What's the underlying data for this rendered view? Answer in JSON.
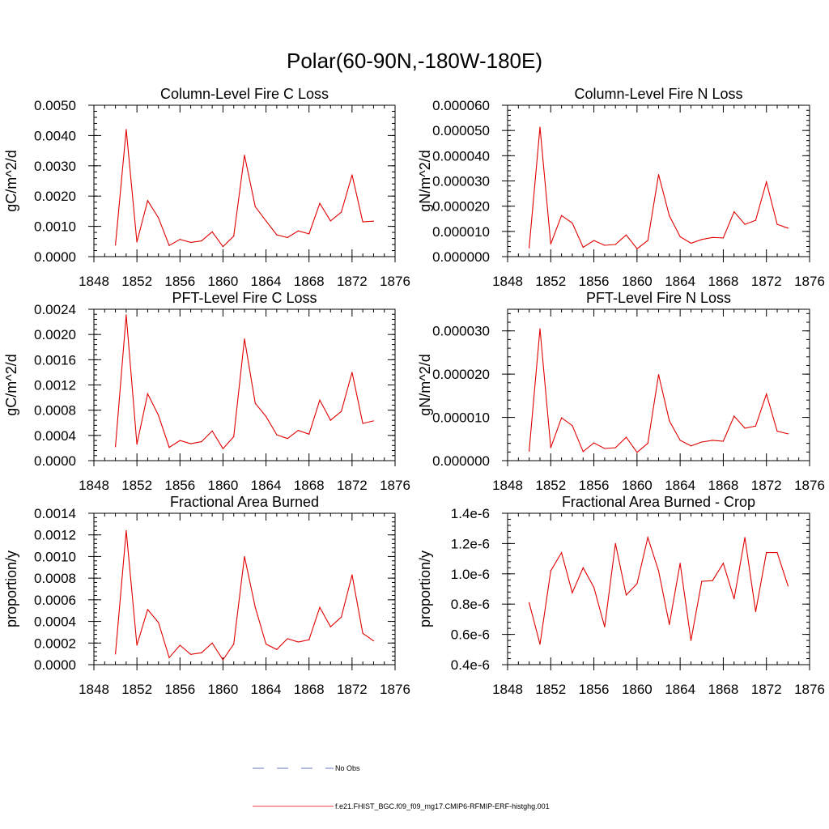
{
  "figure_title": "Polar(60-90N,-180W-180E)",
  "legend": [
    {
      "label": "No Obs",
      "color": "#3b4fb0",
      "style": "dashed"
    },
    {
      "label": "f.e21.FHIST_BGC.f09_f09_mg17.CMIP6-RFMIP-ERF-histghg.001",
      "color": "#e00000",
      "style": "solid"
    }
  ],
  "series_color": "#e00000",
  "chart_data": [
    {
      "type": "line",
      "title": "Column-Level Fire C Loss",
      "ylabel": "gC/m^2/d",
      "xlabel": "",
      "xlim": [
        1848,
        1876
      ],
      "xticks": [
        "1848",
        "1852",
        "1856",
        "1860",
        "1864",
        "1868",
        "1872",
        "1876"
      ],
      "ylim": [
        0,
        0.005
      ],
      "yticks": [
        "0.0000",
        "0.0010",
        "0.0020",
        "0.0030",
        "0.0040",
        "0.0050"
      ],
      "x": [
        1850,
        1851,
        1852,
        1853,
        1854,
        1855,
        1856,
        1857,
        1858,
        1859,
        1860,
        1861,
        1862,
        1863,
        1864,
        1865,
        1866,
        1867,
        1868,
        1869,
        1870,
        1871,
        1872,
        1873,
        1874
      ],
      "values": [
        0.00038,
        0.0042,
        0.00048,
        0.00185,
        0.00128,
        0.00037,
        0.00057,
        0.00047,
        0.00052,
        0.00082,
        0.00033,
        0.00068,
        0.00335,
        0.00165,
        0.00118,
        0.00072,
        0.00063,
        0.00085,
        0.00075,
        0.00176,
        0.00118,
        0.00147,
        0.0027,
        0.00115,
        0.00117
      ]
    },
    {
      "type": "line",
      "title": "Column-Level Fire N Loss",
      "ylabel": "gN/m^2/d",
      "xlabel": "",
      "xlim": [
        1848,
        1876
      ],
      "xticks": [
        "1848",
        "1852",
        "1856",
        "1860",
        "1864",
        "1868",
        "1872",
        "1876"
      ],
      "ylim": [
        0,
        6e-05
      ],
      "yticks": [
        "0.000000",
        "0.000010",
        "0.000020",
        "0.000030",
        "0.000040",
        "0.000050",
        "0.000060"
      ],
      "x": [
        1850,
        1851,
        1852,
        1853,
        1854,
        1855,
        1856,
        1857,
        1858,
        1859,
        1860,
        1861,
        1862,
        1863,
        1864,
        1865,
        1866,
        1867,
        1868,
        1869,
        1870,
        1871,
        1872,
        1873,
        1874
      ],
      "values": [
        3.5e-06,
        5.13e-05,
        5e-06,
        1.63e-05,
        1.33e-05,
        3.7e-06,
        6.4e-06,
        4.5e-06,
        4.8e-06,
        8.6e-06,
        3.1e-06,
        6.4e-06,
        3.25e-05,
        1.62e-05,
        7.9e-06,
        5.3e-06,
        6.8e-06,
        7.6e-06,
        7.4e-06,
        1.78e-05,
        1.28e-05,
        1.44e-05,
        2.96e-05,
        1.28e-05,
        1.13e-05
      ]
    },
    {
      "type": "line",
      "title": "PFT-Level Fire C Loss",
      "ylabel": "gC/m^2/d",
      "xlabel": "",
      "xlim": [
        1848,
        1876
      ],
      "xticks": [
        "1848",
        "1852",
        "1856",
        "1860",
        "1864",
        "1868",
        "1872",
        "1876"
      ],
      "ylim": [
        0,
        0.0024
      ],
      "yticks": [
        "0.0000",
        "0.0004",
        "0.0008",
        "0.0012",
        "0.0016",
        "0.0020",
        "0.0024"
      ],
      "x": [
        1850,
        1851,
        1852,
        1853,
        1854,
        1855,
        1856,
        1857,
        1858,
        1859,
        1860,
        1861,
        1862,
        1863,
        1864,
        1865,
        1866,
        1867,
        1868,
        1869,
        1870,
        1871,
        1872,
        1873,
        1874
      ],
      "values": [
        0.00022,
        0.00231,
        0.00026,
        0.00106,
        0.00072,
        0.00021,
        0.00032,
        0.00027,
        0.0003,
        0.00047,
        0.00019,
        0.00038,
        0.00193,
        0.00091,
        0.0007,
        0.00041,
        0.00035,
        0.00048,
        0.00042,
        0.00096,
        0.00064,
        0.00078,
        0.0014,
        0.00059,
        0.00063
      ]
    },
    {
      "type": "line",
      "title": "PFT-Level Fire N Loss",
      "ylabel": "gN/m^2/d",
      "xlabel": "",
      "xlim": [
        1848,
        1876
      ],
      "xticks": [
        "1848",
        "1852",
        "1856",
        "1860",
        "1864",
        "1868",
        "1872",
        "1876"
      ],
      "ylim": [
        0,
        3.5e-05
      ],
      "yticks": [
        "0.000000",
        "0.000010",
        "0.000020",
        "0.000030"
      ],
      "ytick_values": [
        0,
        1e-05,
        2e-05,
        3e-05
      ],
      "x": [
        1850,
        1851,
        1852,
        1853,
        1854,
        1855,
        1856,
        1857,
        1858,
        1859,
        1860,
        1861,
        1862,
        1863,
        1864,
        1865,
        1866,
        1867,
        1868,
        1869,
        1870,
        1871,
        1872,
        1873,
        1874
      ],
      "values": [
        2.2e-06,
        3.05e-05,
        3e-06,
        9.9e-06,
        8.1e-06,
        2.1e-06,
        4.1e-06,
        2.8e-06,
        3e-06,
        5.4e-06,
        1.9e-06,
        4e-06,
        1.99e-05,
        9.2e-06,
        4.7e-06,
        3.4e-06,
        4.3e-06,
        4.7e-06,
        4.5e-06,
        1.03e-05,
        7.5e-06,
        8e-06,
        1.54e-05,
        6.8e-06,
        6.2e-06
      ]
    },
    {
      "type": "line",
      "title": "Fractional Area Burned",
      "ylabel": "proportion/y",
      "xlabel": "",
      "xlim": [
        1848,
        1876
      ],
      "xticks": [
        "1848",
        "1852",
        "1856",
        "1860",
        "1864",
        "1868",
        "1872",
        "1876"
      ],
      "ylim": [
        0,
        0.0014
      ],
      "yticks": [
        "0.0000",
        "0.0002",
        "0.0004",
        "0.0006",
        "0.0008",
        "0.0010",
        "0.0012",
        "0.0014"
      ],
      "x": [
        1850,
        1851,
        1852,
        1853,
        1854,
        1855,
        1856,
        1857,
        1858,
        1859,
        1860,
        1861,
        1862,
        1863,
        1864,
        1865,
        1866,
        1867,
        1868,
        1869,
        1870,
        1871,
        1872,
        1873,
        1874
      ],
      "values": [
        9.8e-05,
        0.00124,
        0.00018,
        0.00051,
        0.00039,
        6.5e-05,
        0.00018,
        9.5e-05,
        0.00011,
        0.0002,
        4.5e-05,
        0.00019,
        0.001,
        0.00053,
        0.00019,
        0.00014,
        0.00024,
        0.00021,
        0.00023,
        0.00053,
        0.00035,
        0.00044,
        0.00083,
        0.00029,
        0.00022
      ]
    },
    {
      "type": "line",
      "title": "Fractional Area Burned - Crop",
      "ylabel": "proportion/y",
      "xlabel": "",
      "xlim": [
        1848,
        1876
      ],
      "xticks": [
        "1848",
        "1852",
        "1856",
        "1860",
        "1864",
        "1868",
        "1872",
        "1876"
      ],
      "ylim": [
        4e-07,
        1.4e-06
      ],
      "yticks": [
        "0.4e-6",
        "0.6e-6",
        "0.8e-6",
        "1.0e-6",
        "1.2e-6",
        "1.4e-6"
      ],
      "x": [
        1850,
        1851,
        1852,
        1853,
        1854,
        1855,
        1856,
        1857,
        1858,
        1859,
        1860,
        1861,
        1862,
        1863,
        1864,
        1865,
        1866,
        1867,
        1868,
        1869,
        1870,
        1871,
        1872,
        1873,
        1874
      ],
      "values": [
        8.1e-07,
        5.35e-07,
        1.02e-06,
        1.14e-06,
        8.75e-07,
        1.04e-06,
        9.1e-07,
        6.5e-07,
        1.2e-06,
        8.6e-07,
        9.35e-07,
        1.24e-06,
        1.02e-06,
        6.65e-07,
        1.07e-06,
        5.6e-07,
        9.5e-07,
        9.55e-07,
        1.07e-06,
        8.35e-07,
        1.24e-06,
        7.5e-07,
        1.14e-06,
        1.14e-06,
        9.2e-07
      ]
    }
  ]
}
